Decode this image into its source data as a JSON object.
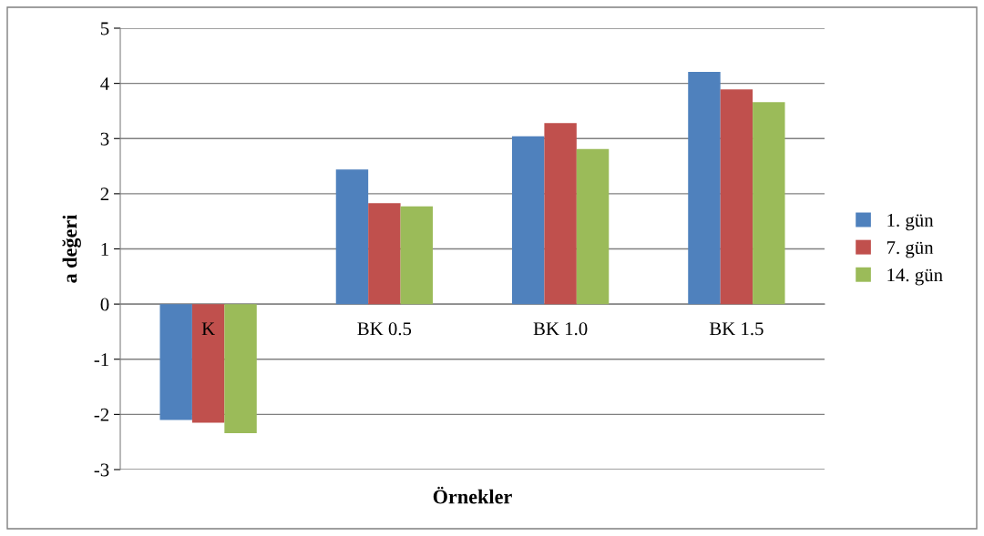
{
  "chart_data": {
    "type": "bar",
    "xlabel": "Örnekler",
    "ylabel": "a değeri",
    "categories": [
      "K",
      "BK 0.5",
      "BK 1.0",
      "BK 1.5"
    ],
    "series": [
      {
        "name": "1. gün",
        "color": "#4f81bd",
        "values": [
          -2.1,
          2.44,
          3.04,
          4.21
        ]
      },
      {
        "name": "7. gün",
        "color": "#c0504d",
        "values": [
          -2.15,
          1.83,
          3.28,
          3.89
        ]
      },
      {
        "name": "14. gün",
        "color": "#9bbb59",
        "values": [
          -2.34,
          1.77,
          2.81,
          3.66
        ]
      }
    ],
    "ylim": [
      -3,
      5
    ],
    "yticks": [
      -3,
      -2,
      -1,
      0,
      1,
      2,
      3,
      4,
      5
    ],
    "grid": "y",
    "legend": "right"
  }
}
